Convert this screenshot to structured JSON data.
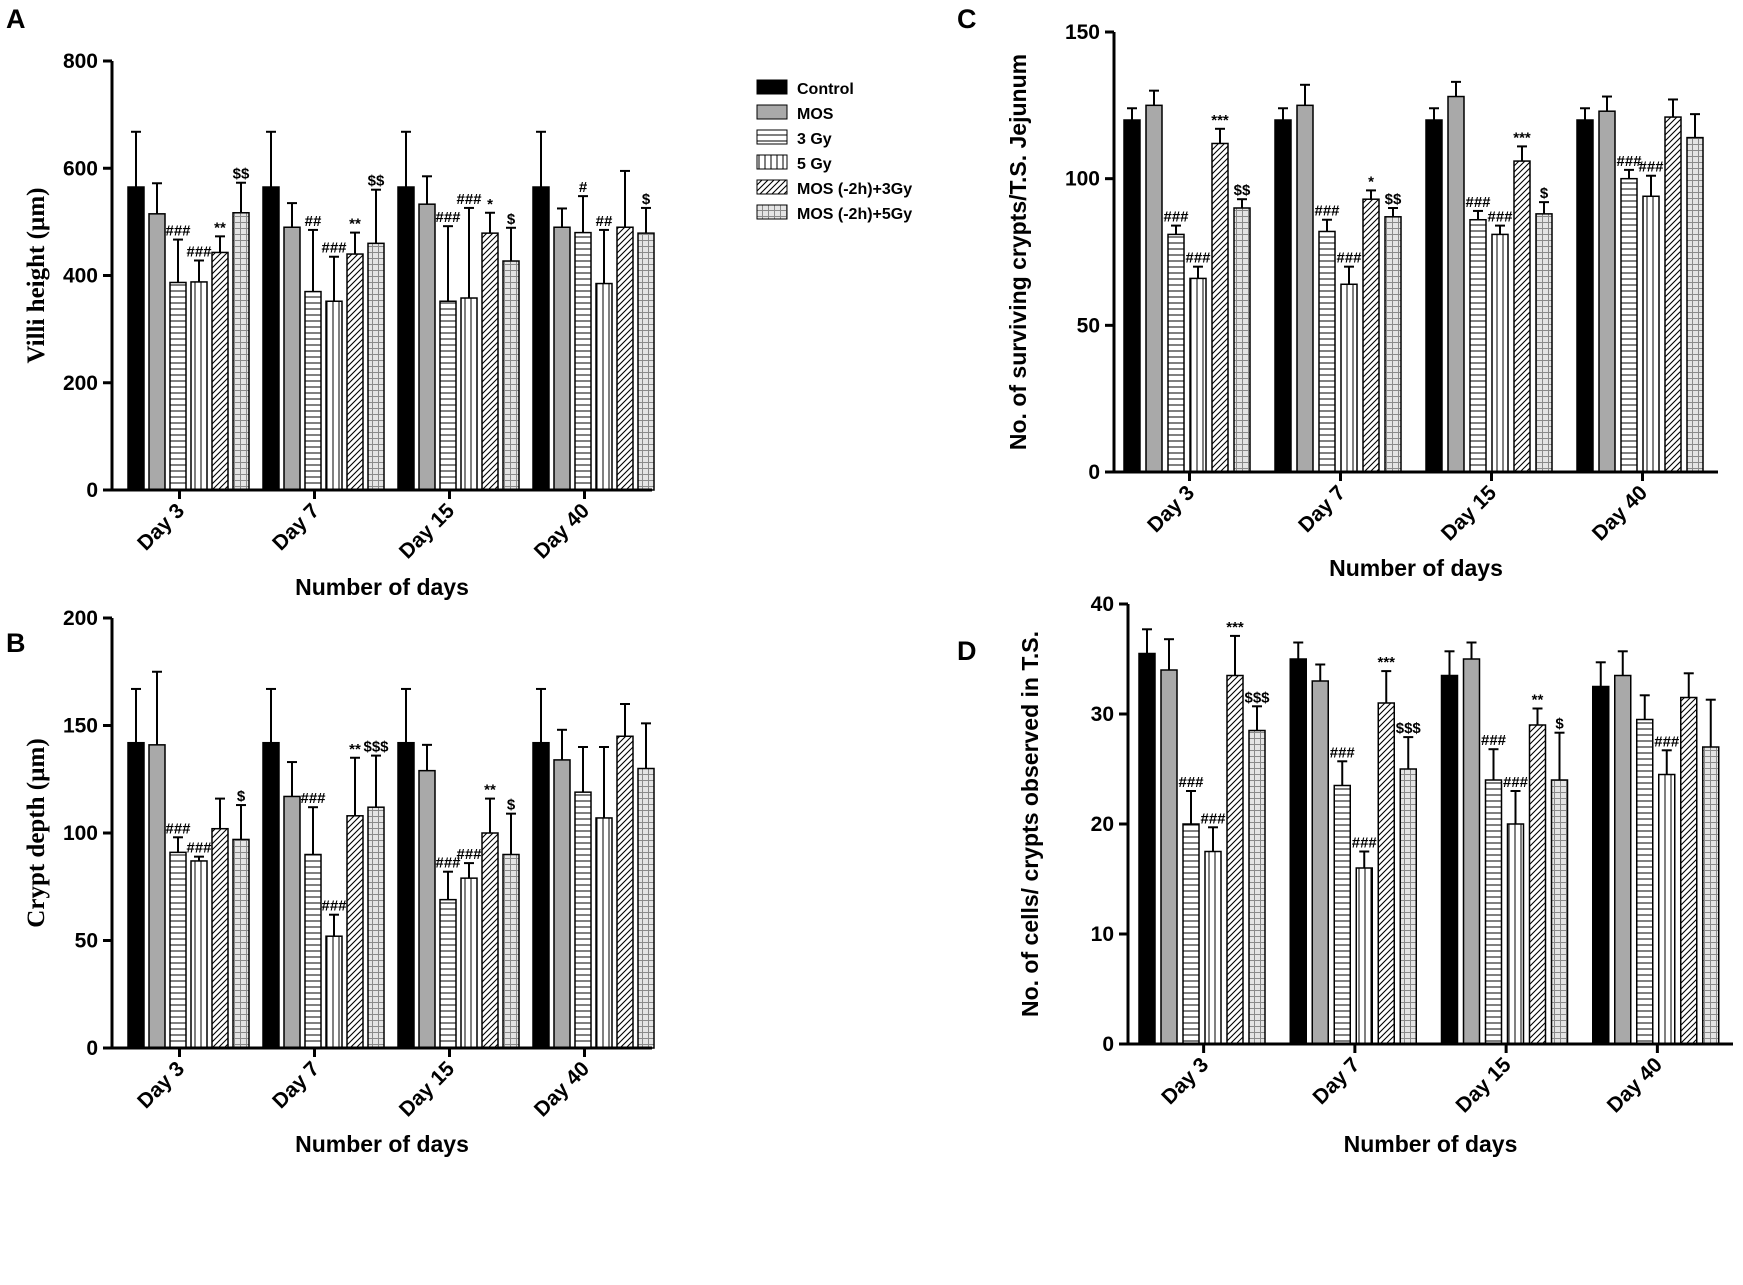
{
  "figure": {
    "legend": [
      "Control",
      "MOS",
      "3 Gy",
      "5 Gy",
      "MOS (-2h)+3Gy",
      "MOS (-2h)+5Gy"
    ]
  },
  "chart_data": [
    {
      "panel": "A",
      "type": "bar",
      "title": "",
      "xlabel": "Number of days",
      "ylabel": "Villi height (µm)",
      "ylim": [
        0,
        800
      ],
      "yticks": [
        0,
        200,
        400,
        600,
        800
      ],
      "categories": [
        "Day 3",
        "Day 7",
        "Day 15",
        "Day 40"
      ],
      "series": [
        {
          "name": "Control",
          "values": [
            565,
            565,
            565,
            565
          ],
          "errors": [
            103,
            103,
            103,
            103
          ],
          "annotations": [
            "",
            "",
            "",
            ""
          ]
        },
        {
          "name": "MOS",
          "values": [
            515,
            490,
            533,
            490
          ],
          "errors": [
            57,
            45,
            52,
            35
          ],
          "annotations": [
            "",
            "",
            "",
            ""
          ]
        },
        {
          "name": "3 Gy",
          "values": [
            387,
            370,
            352,
            480
          ],
          "errors": [
            80,
            115,
            140,
            68
          ],
          "annotations": [
            "###",
            "##",
            "###",
            "#"
          ]
        },
        {
          "name": "5 Gy",
          "values": [
            388,
            352,
            358,
            385
          ],
          "errors": [
            40,
            83,
            168,
            100
          ],
          "annotations": [
            "###",
            "###",
            "###",
            "##"
          ]
        },
        {
          "name": "MOS (-2h)+3Gy",
          "values": [
            443,
            440,
            479,
            490
          ],
          "errors": [
            30,
            40,
            38,
            105
          ],
          "annotations": [
            "**",
            "**",
            "*",
            ""
          ]
        },
        {
          "name": "MOS (-2h)+5Gy",
          "values": [
            517,
            460,
            427,
            479
          ],
          "errors": [
            56,
            100,
            62,
            47
          ],
          "annotations": [
            "$$",
            "$$",
            "$",
            "$"
          ]
        }
      ]
    },
    {
      "panel": "B",
      "type": "bar",
      "title": "",
      "xlabel": "Number of days",
      "ylabel": "Crypt depth (µm)",
      "ylim": [
        0,
        200
      ],
      "yticks": [
        0,
        50,
        100,
        150,
        200
      ],
      "categories": [
        "Day 3",
        "Day 7",
        "Day 15",
        "Day 40"
      ],
      "series": [
        {
          "name": "Control",
          "values": [
            142,
            142,
            142,
            142
          ],
          "errors": [
            25,
            25,
            25,
            25
          ],
          "annotations": [
            "",
            "",
            "",
            ""
          ]
        },
        {
          "name": "MOS",
          "values": [
            141,
            117,
            129,
            134
          ],
          "errors": [
            34,
            16,
            12,
            14
          ],
          "annotations": [
            "",
            "",
            "",
            ""
          ]
        },
        {
          "name": "3 Gy",
          "values": [
            91,
            90,
            69,
            119
          ],
          "errors": [
            7,
            22,
            13,
            21
          ],
          "annotations": [
            "###",
            "###",
            "###",
            ""
          ]
        },
        {
          "name": "5 Gy",
          "values": [
            87,
            52,
            79,
            107
          ],
          "errors": [
            2,
            10,
            7,
            33
          ],
          "annotations": [
            "###",
            "###",
            "###",
            ""
          ]
        },
        {
          "name": "MOS (-2h)+3Gy",
          "values": [
            102,
            108,
            100,
            145
          ],
          "errors": [
            14,
            27,
            16,
            15
          ],
          "annotations": [
            "",
            "**",
            "**",
            ""
          ]
        },
        {
          "name": "MOS (-2h)+5Gy",
          "values": [
            97,
            112,
            90,
            130
          ],
          "errors": [
            16,
            24,
            19,
            21
          ],
          "annotations": [
            "$",
            "$$$",
            "$",
            ""
          ]
        }
      ]
    },
    {
      "panel": "C",
      "type": "bar",
      "title": "",
      "xlabel": "Number of days",
      "ylabel": "No. of surviving crypts/T.S. Jejunum",
      "ylim": [
        0,
        150
      ],
      "yticks": [
        0,
        50,
        100,
        150
      ],
      "categories": [
        "Day 3",
        "Day 7",
        "Day 15",
        "Day 40"
      ],
      "series": [
        {
          "name": "Control",
          "values": [
            120,
            120,
            120,
            120
          ],
          "errors": [
            4,
            4,
            4,
            4
          ],
          "annotations": [
            "",
            "",
            "",
            ""
          ]
        },
        {
          "name": "MOS",
          "values": [
            125,
            125,
            128,
            123
          ],
          "errors": [
            5,
            7,
            5,
            5
          ],
          "annotations": [
            "",
            "",
            "",
            ""
          ]
        },
        {
          "name": "3 Gy",
          "values": [
            81,
            82,
            86,
            100
          ],
          "errors": [
            3,
            4,
            3,
            3
          ],
          "annotations": [
            "###",
            "###",
            "###",
            "###"
          ]
        },
        {
          "name": "5 Gy",
          "values": [
            66,
            64,
            81,
            94
          ],
          "errors": [
            4,
            6,
            3,
            7
          ],
          "annotations": [
            "###",
            "###",
            "###",
            "###"
          ]
        },
        {
          "name": "MOS (-2h)+3Gy",
          "values": [
            112,
            93,
            106,
            121
          ],
          "errors": [
            5,
            3,
            5,
            6
          ],
          "annotations": [
            "***",
            "*",
            "***",
            ""
          ]
        },
        {
          "name": "MOS (-2h)+5Gy",
          "values": [
            90,
            87,
            88,
            114
          ],
          "errors": [
            3,
            3,
            4,
            8
          ],
          "annotations": [
            "$$",
            "$$",
            "$",
            ""
          ]
        }
      ]
    },
    {
      "panel": "D",
      "type": "bar",
      "title": "",
      "xlabel": "Number of days",
      "ylabel": "No. of cells/ crypts observed in T.S.",
      "ylim": [
        0,
        40
      ],
      "yticks": [
        0,
        10,
        20,
        30,
        40
      ],
      "categories": [
        "Day 3",
        "Day 7",
        "Day 15",
        "Day 40"
      ],
      "series": [
        {
          "name": "Control",
          "values": [
            35.5,
            35,
            33.5,
            32.5
          ],
          "errors": [
            2.2,
            1.5,
            2.2,
            2.2
          ],
          "annotations": [
            "",
            "",
            "",
            ""
          ]
        },
        {
          "name": "MOS",
          "values": [
            34,
            33,
            35,
            33.5
          ],
          "errors": [
            2.8,
            1.5,
            1.5,
            2.2
          ],
          "annotations": [
            "",
            "",
            "",
            ""
          ]
        },
        {
          "name": "3 Gy",
          "values": [
            20,
            23.5,
            24,
            29.5
          ],
          "errors": [
            3,
            2.2,
            2.8,
            2.2
          ],
          "annotations": [
            "###",
            "###",
            "###",
            ""
          ]
        },
        {
          "name": "5 Gy",
          "values": [
            17.5,
            16,
            20,
            24.5
          ],
          "errors": [
            2.2,
            1.5,
            3,
            2.2
          ],
          "annotations": [
            "###",
            "###",
            "###",
            "###"
          ]
        },
        {
          "name": "MOS (-2h)+3Gy",
          "values": [
            33.5,
            31,
            29,
            31.5
          ],
          "errors": [
            3.6,
            2.9,
            1.5,
            2.2
          ],
          "annotations": [
            "***",
            "***",
            "**",
            ""
          ]
        },
        {
          "name": "MOS (-2h)+5Gy",
          "values": [
            28.5,
            25,
            24,
            27
          ],
          "errors": [
            2.2,
            2.9,
            4.3,
            4.3
          ],
          "annotations": [
            "$$$",
            "$$$",
            "$",
            ""
          ]
        }
      ]
    }
  ]
}
